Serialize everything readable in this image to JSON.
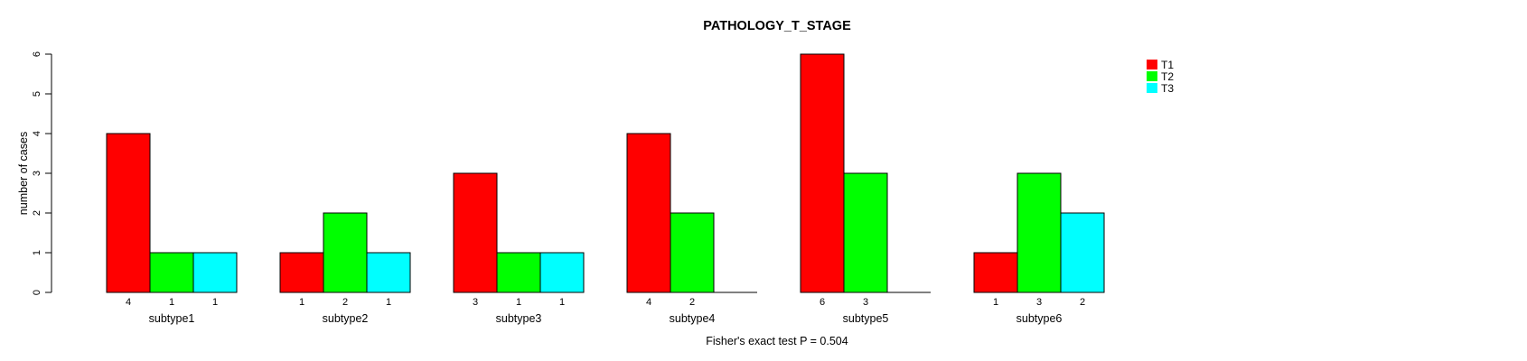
{
  "chart_data": {
    "type": "bar",
    "layout": "grouped",
    "title": "PATHOLOGY_T_STAGE",
    "xlabel": "",
    "ylabel": "number of cases",
    "annotation": "Fisher's exact test P = 0.504",
    "categories": [
      "subtype1",
      "subtype2",
      "subtype3",
      "subtype4",
      "subtype5",
      "subtype6"
    ],
    "series": [
      {
        "name": "T1",
        "color": "#FF0000",
        "values": [
          4,
          1,
          3,
          4,
          6,
          1
        ]
      },
      {
        "name": "T2",
        "color": "#00FF00",
        "values": [
          1,
          2,
          1,
          2,
          3,
          3
        ]
      },
      {
        "name": "T3",
        "color": "#00FFFF",
        "values": [
          1,
          1,
          1,
          0,
          0,
          2
        ]
      }
    ],
    "ylim": [
      0,
      6
    ],
    "yticks": [
      0,
      1,
      2,
      3,
      4,
      5,
      6
    ],
    "grid": false,
    "bar_value_labels_shown": true,
    "zero_bars_drawn_as_baseline": true,
    "legend_position": "top-right",
    "axis_color": "#000000",
    "background_color": "#FFFFFF"
  }
}
